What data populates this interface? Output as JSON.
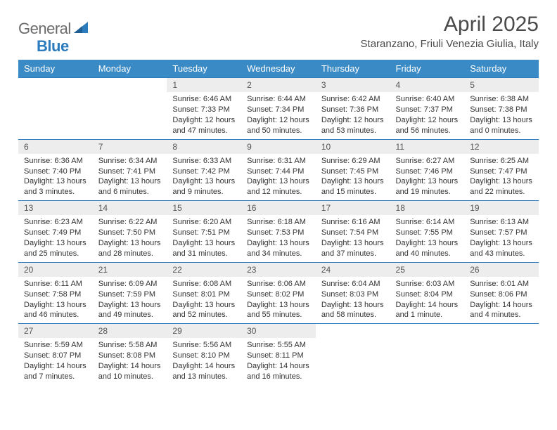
{
  "brand": {
    "part1": "General",
    "part2": "Blue"
  },
  "title": "April 2025",
  "location": "Staranzano, Friuli Venezia Giulia, Italy",
  "colors": {
    "header_bg": "#3a8ac5",
    "header_text": "#ffffff",
    "daynum_bg": "#ededed",
    "rule": "#2b7bbd",
    "logo_gray": "#6b6b6b",
    "logo_blue": "#2b7bbd"
  },
  "day_labels": [
    "Sunday",
    "Monday",
    "Tuesday",
    "Wednesday",
    "Thursday",
    "Friday",
    "Saturday"
  ],
  "weeks": [
    [
      {
        "num": "",
        "sunrise": "",
        "sunset": "",
        "daylight": ""
      },
      {
        "num": "",
        "sunrise": "",
        "sunset": "",
        "daylight": ""
      },
      {
        "num": "1",
        "sunrise": "Sunrise: 6:46 AM",
        "sunset": "Sunset: 7:33 PM",
        "daylight": "Daylight: 12 hours and 47 minutes."
      },
      {
        "num": "2",
        "sunrise": "Sunrise: 6:44 AM",
        "sunset": "Sunset: 7:34 PM",
        "daylight": "Daylight: 12 hours and 50 minutes."
      },
      {
        "num": "3",
        "sunrise": "Sunrise: 6:42 AM",
        "sunset": "Sunset: 7:36 PM",
        "daylight": "Daylight: 12 hours and 53 minutes."
      },
      {
        "num": "4",
        "sunrise": "Sunrise: 6:40 AM",
        "sunset": "Sunset: 7:37 PM",
        "daylight": "Daylight: 12 hours and 56 minutes."
      },
      {
        "num": "5",
        "sunrise": "Sunrise: 6:38 AM",
        "sunset": "Sunset: 7:38 PM",
        "daylight": "Daylight: 13 hours and 0 minutes."
      }
    ],
    [
      {
        "num": "6",
        "sunrise": "Sunrise: 6:36 AM",
        "sunset": "Sunset: 7:40 PM",
        "daylight": "Daylight: 13 hours and 3 minutes."
      },
      {
        "num": "7",
        "sunrise": "Sunrise: 6:34 AM",
        "sunset": "Sunset: 7:41 PM",
        "daylight": "Daylight: 13 hours and 6 minutes."
      },
      {
        "num": "8",
        "sunrise": "Sunrise: 6:33 AM",
        "sunset": "Sunset: 7:42 PM",
        "daylight": "Daylight: 13 hours and 9 minutes."
      },
      {
        "num": "9",
        "sunrise": "Sunrise: 6:31 AM",
        "sunset": "Sunset: 7:44 PM",
        "daylight": "Daylight: 13 hours and 12 minutes."
      },
      {
        "num": "10",
        "sunrise": "Sunrise: 6:29 AM",
        "sunset": "Sunset: 7:45 PM",
        "daylight": "Daylight: 13 hours and 15 minutes."
      },
      {
        "num": "11",
        "sunrise": "Sunrise: 6:27 AM",
        "sunset": "Sunset: 7:46 PM",
        "daylight": "Daylight: 13 hours and 19 minutes."
      },
      {
        "num": "12",
        "sunrise": "Sunrise: 6:25 AM",
        "sunset": "Sunset: 7:47 PM",
        "daylight": "Daylight: 13 hours and 22 minutes."
      }
    ],
    [
      {
        "num": "13",
        "sunrise": "Sunrise: 6:23 AM",
        "sunset": "Sunset: 7:49 PM",
        "daylight": "Daylight: 13 hours and 25 minutes."
      },
      {
        "num": "14",
        "sunrise": "Sunrise: 6:22 AM",
        "sunset": "Sunset: 7:50 PM",
        "daylight": "Daylight: 13 hours and 28 minutes."
      },
      {
        "num": "15",
        "sunrise": "Sunrise: 6:20 AM",
        "sunset": "Sunset: 7:51 PM",
        "daylight": "Daylight: 13 hours and 31 minutes."
      },
      {
        "num": "16",
        "sunrise": "Sunrise: 6:18 AM",
        "sunset": "Sunset: 7:53 PM",
        "daylight": "Daylight: 13 hours and 34 minutes."
      },
      {
        "num": "17",
        "sunrise": "Sunrise: 6:16 AM",
        "sunset": "Sunset: 7:54 PM",
        "daylight": "Daylight: 13 hours and 37 minutes."
      },
      {
        "num": "18",
        "sunrise": "Sunrise: 6:14 AM",
        "sunset": "Sunset: 7:55 PM",
        "daylight": "Daylight: 13 hours and 40 minutes."
      },
      {
        "num": "19",
        "sunrise": "Sunrise: 6:13 AM",
        "sunset": "Sunset: 7:57 PM",
        "daylight": "Daylight: 13 hours and 43 minutes."
      }
    ],
    [
      {
        "num": "20",
        "sunrise": "Sunrise: 6:11 AM",
        "sunset": "Sunset: 7:58 PM",
        "daylight": "Daylight: 13 hours and 46 minutes."
      },
      {
        "num": "21",
        "sunrise": "Sunrise: 6:09 AM",
        "sunset": "Sunset: 7:59 PM",
        "daylight": "Daylight: 13 hours and 49 minutes."
      },
      {
        "num": "22",
        "sunrise": "Sunrise: 6:08 AM",
        "sunset": "Sunset: 8:01 PM",
        "daylight": "Daylight: 13 hours and 52 minutes."
      },
      {
        "num": "23",
        "sunrise": "Sunrise: 6:06 AM",
        "sunset": "Sunset: 8:02 PM",
        "daylight": "Daylight: 13 hours and 55 minutes."
      },
      {
        "num": "24",
        "sunrise": "Sunrise: 6:04 AM",
        "sunset": "Sunset: 8:03 PM",
        "daylight": "Daylight: 13 hours and 58 minutes."
      },
      {
        "num": "25",
        "sunrise": "Sunrise: 6:03 AM",
        "sunset": "Sunset: 8:04 PM",
        "daylight": "Daylight: 14 hours and 1 minute."
      },
      {
        "num": "26",
        "sunrise": "Sunrise: 6:01 AM",
        "sunset": "Sunset: 8:06 PM",
        "daylight": "Daylight: 14 hours and 4 minutes."
      }
    ],
    [
      {
        "num": "27",
        "sunrise": "Sunrise: 5:59 AM",
        "sunset": "Sunset: 8:07 PM",
        "daylight": "Daylight: 14 hours and 7 minutes."
      },
      {
        "num": "28",
        "sunrise": "Sunrise: 5:58 AM",
        "sunset": "Sunset: 8:08 PM",
        "daylight": "Daylight: 14 hours and 10 minutes."
      },
      {
        "num": "29",
        "sunrise": "Sunrise: 5:56 AM",
        "sunset": "Sunset: 8:10 PM",
        "daylight": "Daylight: 14 hours and 13 minutes."
      },
      {
        "num": "30",
        "sunrise": "Sunrise: 5:55 AM",
        "sunset": "Sunset: 8:11 PM",
        "daylight": "Daylight: 14 hours and 16 minutes."
      },
      {
        "num": "",
        "sunrise": "",
        "sunset": "",
        "daylight": ""
      },
      {
        "num": "",
        "sunrise": "",
        "sunset": "",
        "daylight": ""
      },
      {
        "num": "",
        "sunrise": "",
        "sunset": "",
        "daylight": ""
      }
    ]
  ]
}
